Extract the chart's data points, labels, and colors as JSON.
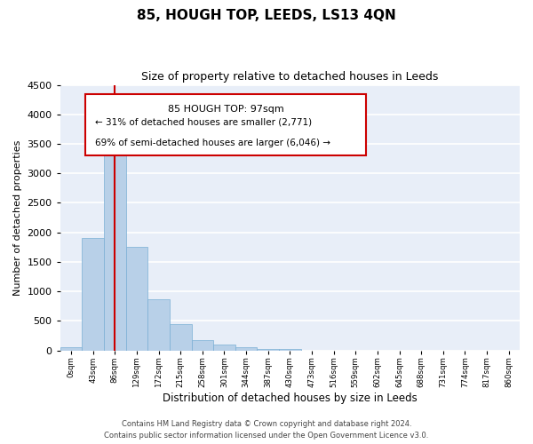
{
  "title": "85, HOUGH TOP, LEEDS, LS13 4QN",
  "subtitle": "Size of property relative to detached houses in Leeds",
  "xlabel": "Distribution of detached houses by size in Leeds",
  "ylabel": "Number of detached properties",
  "bar_labels": [
    "0sqm",
    "43sqm",
    "86sqm",
    "129sqm",
    "172sqm",
    "215sqm",
    "258sqm",
    "301sqm",
    "344sqm",
    "387sqm",
    "430sqm",
    "473sqm",
    "516sqm",
    "559sqm",
    "602sqm",
    "645sqm",
    "688sqm",
    "731sqm",
    "774sqm",
    "817sqm",
    "860sqm"
  ],
  "bar_values": [
    50,
    1900,
    3500,
    1750,
    870,
    450,
    175,
    100,
    50,
    30,
    30,
    0,
    0,
    0,
    0,
    0,
    0,
    0,
    0,
    0,
    0
  ],
  "bar_color": "#b8d0e8",
  "bar_edge_color": "#7aafd4",
  "marker_color": "#cc0000",
  "annotation_line1": "85 HOUGH TOP: 97sqm",
  "annotation_line2": "← 31% of detached houses are smaller (2,771)",
  "annotation_line3": "69% of semi-detached houses are larger (6,046) →",
  "annotation_box_color": "#cc0000",
  "ylim": [
    0,
    4500
  ],
  "yticks": [
    0,
    500,
    1000,
    1500,
    2000,
    2500,
    3000,
    3500,
    4000,
    4500
  ],
  "footer_line1": "Contains HM Land Registry data © Crown copyright and database right 2024.",
  "footer_line2": "Contains public sector information licensed under the Open Government Licence v3.0.",
  "background_color": "#e8eef8",
  "grid_color": "#ffffff",
  "fig_background": "#ffffff"
}
